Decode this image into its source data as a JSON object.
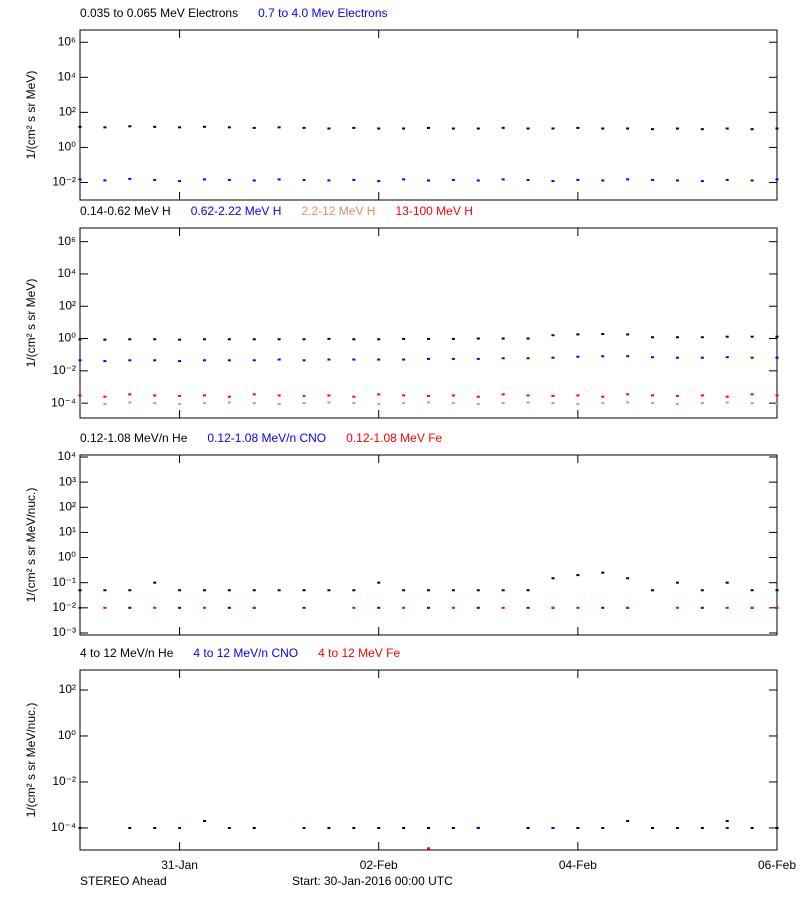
{
  "chart_data": [
    {
      "type": "scatter",
      "y_label": "1/(cm² s sr MeV)",
      "log_y": true,
      "grid": false,
      "x": [
        0,
        0.25,
        0.5,
        0.75,
        1,
        1.25,
        1.5,
        1.75,
        2,
        2.25,
        2.5,
        2.75,
        3,
        3.25,
        3.5,
        3.75,
        4,
        4.25,
        4.5,
        4.75,
        5,
        5.25,
        5.5,
        5.75,
        6,
        6.25,
        6.5,
        6.75,
        7
      ],
      "xlim": [
        0,
        7
      ],
      "ylim": [
        0.001,
        5000000
      ],
      "yticks": [
        {
          "value": 0.01,
          "label": "10⁻²"
        },
        {
          "value": 1,
          "label": "10⁰"
        },
        {
          "value": 100,
          "label": "10²"
        },
        {
          "value": 10000,
          "label": "10⁴"
        },
        {
          "value": 1000000,
          "label": "10⁶"
        }
      ],
      "series": [
        {
          "name": "0.035 to 0.065 MeV Electrons",
          "color": "#000000",
          "values": [
            15,
            14,
            16,
            15,
            14,
            15,
            14,
            13,
            14,
            13,
            12,
            13,
            12,
            12,
            13,
            12,
            12,
            13,
            12,
            12,
            13,
            12,
            12,
            11,
            12,
            11,
            12,
            11,
            12
          ]
        },
        {
          "name": "0.7 to 4.0 Mev Electrons",
          "color": "#0000ff",
          "values": [
            0.015,
            0.013,
            0.016,
            0.014,
            0.012,
            0.015,
            0.014,
            0.013,
            0.015,
            0.014,
            0.013,
            0.014,
            0.012,
            0.015,
            0.013,
            0.014,
            0.013,
            0.015,
            0.014,
            0.012,
            0.014,
            0.013,
            0.015,
            0.014,
            0.013,
            0.012,
            0.014,
            0.013,
            0.015
          ]
        }
      ]
    },
    {
      "type": "scatter",
      "y_label": "1/(cm² s sr MeV)",
      "log_y": true,
      "grid": false,
      "x": [
        0,
        0.25,
        0.5,
        0.75,
        1,
        1.25,
        1.5,
        1.75,
        2,
        2.25,
        2.5,
        2.75,
        3,
        3.25,
        3.5,
        3.75,
        4,
        4.25,
        4.5,
        4.75,
        5,
        5.25,
        5.5,
        5.75,
        6,
        6.25,
        6.5,
        6.75,
        7
      ],
      "xlim": [
        0,
        7
      ],
      "ylim": [
        1.2e-05,
        7000000
      ],
      "yticks": [
        {
          "value": 0.0001,
          "label": "10⁻⁴"
        },
        {
          "value": 0.01,
          "label": "10⁻²"
        },
        {
          "value": 1,
          "label": "10⁰"
        },
        {
          "value": 100,
          "label": "10²"
        },
        {
          "value": 10000,
          "label": "10⁴"
        },
        {
          "value": 1000000,
          "label": "10⁶"
        }
      ],
      "series": [
        {
          "name": "0.14-0.62 MeV H",
          "color": "#000000",
          "values": [
            0.9,
            0.85,
            0.9,
            0.9,
            0.85,
            0.9,
            0.9,
            0.9,
            0.9,
            0.9,
            0.95,
            0.9,
            0.9,
            0.95,
            0.95,
            0.95,
            1.0,
            1.0,
            1.0,
            1.6,
            1.8,
            1.9,
            1.8,
            1.2,
            1.2,
            1.2,
            1.3,
            1.3,
            1.3
          ]
        },
        {
          "name": "0.62-2.22 MeV H",
          "color": "#0000ff",
          "values": [
            0.045,
            0.04,
            0.045,
            0.045,
            0.04,
            0.045,
            0.045,
            0.045,
            0.05,
            0.045,
            0.05,
            0.05,
            0.05,
            0.05,
            0.055,
            0.055,
            0.055,
            0.06,
            0.06,
            0.065,
            0.075,
            0.08,
            0.08,
            0.07,
            0.065,
            0.065,
            0.07,
            0.065,
            0.065
          ]
        },
        {
          "name": "2.2-12 MeV H",
          "color": "#e0906c",
          "values": [
            0.0001,
            9e-05,
            0.00011,
            0.0001,
            9e-05,
            0.0001,
            0.00011,
            0.0001,
            9e-05,
            0.0001,
            0.00011,
            0.0001,
            9e-05,
            0.0001,
            0.00011,
            0.0001,
            9e-05,
            0.0001,
            0.00011,
            0.0001,
            9e-05,
            0.0001,
            0.00011,
            0.0001,
            9e-05,
            0.0001,
            0.00011,
            0.0001,
            9e-05
          ]
        },
        {
          "name": "13-100 MeV H",
          "color": "#ff0000",
          "values": [
            0.0003,
            0.00025,
            0.00035,
            0.0003,
            0.00028,
            0.0003,
            0.00025,
            0.00035,
            0.0003,
            0.00028,
            0.0003,
            0.00025,
            0.00035,
            0.0003,
            0.00028,
            0.0003,
            0.00025,
            0.00035,
            0.0003,
            0.00028,
            0.0003,
            0.00025,
            0.00035,
            0.0003,
            0.00028,
            0.0003,
            0.00025,
            0.00035,
            0.0003
          ]
        }
      ]
    },
    {
      "type": "scatter",
      "y_label": "1/(cm² s sr MeV/nuc.)",
      "log_y": true,
      "grid": false,
      "x": [
        0,
        0.25,
        0.5,
        0.75,
        1,
        1.25,
        1.5,
        1.75,
        2,
        2.25,
        2.5,
        2.75,
        3,
        3.25,
        3.5,
        3.75,
        4,
        4.25,
        4.5,
        4.75,
        5,
        5.25,
        5.5,
        5.75,
        6,
        6.25,
        6.5,
        6.75,
        7
      ],
      "xlim": [
        0,
        7
      ],
      "ylim": [
        0.00083,
        12000
      ],
      "yticks": [
        {
          "value": 0.001,
          "label": "10⁻³"
        },
        {
          "value": 0.01,
          "label": "10⁻²"
        },
        {
          "value": 0.1,
          "label": "10⁻¹"
        },
        {
          "value": 1,
          "label": "10⁰"
        },
        {
          "value": 10,
          "label": "10¹"
        },
        {
          "value": 100,
          "label": "10²"
        },
        {
          "value": 1000,
          "label": "10³"
        },
        {
          "value": 10000,
          "label": "10⁴"
        }
      ],
      "series": [
        {
          "name": "0.12-1.08 MeV/n He",
          "color": "#000000",
          "values": [
            0.05,
            0.05,
            0.05,
            0.1,
            0.05,
            0.05,
            0.05,
            0.05,
            0.05,
            0.05,
            0.05,
            0.05,
            0.1,
            0.05,
            0.05,
            0.05,
            0.05,
            0.05,
            0.05,
            0.15,
            0.2,
            0.25,
            0.15,
            0.05,
            0.1,
            0.05,
            0.1,
            0.05,
            0.05
          ]
        },
        {
          "name": "0.12-1.08 MeV/n CNO",
          "color": "#0000ff",
          "values": [
            0.01,
            null,
            0.01,
            null,
            0.01,
            null,
            0.01,
            0.01,
            null,
            0.01,
            null,
            null,
            0.01,
            null,
            0.01,
            null,
            0.01,
            null,
            0.01,
            0.01,
            null,
            0.01,
            0.01,
            null,
            null,
            0.01,
            null,
            0.01,
            0.01
          ]
        },
        {
          "name": "0.12-1.08 MeV Fe",
          "color": "#ff0000",
          "values": [
            null,
            0.01,
            null,
            0.01,
            null,
            0.01,
            null,
            0.01,
            null,
            null,
            null,
            0.01,
            null,
            0.01,
            null,
            0.01,
            null,
            0.01,
            null,
            0.01,
            0.01,
            null,
            0.01,
            null,
            0.01,
            null,
            0.01,
            0.01,
            0.01
          ]
        }
      ]
    },
    {
      "type": "scatter",
      "y_label": "1/(cm² s sr MeV/nuc.)",
      "log_y": true,
      "grid": false,
      "x": [
        0,
        0.25,
        0.5,
        0.75,
        1,
        1.25,
        1.5,
        1.75,
        2,
        2.25,
        2.5,
        2.75,
        3,
        3.25,
        3.5,
        3.75,
        4,
        4.25,
        4.5,
        4.75,
        5,
        5.25,
        5.5,
        5.75,
        6,
        6.25,
        6.5,
        6.75,
        7
      ],
      "xlim": [
        0,
        7
      ],
      "ylim": [
        1.1e-05,
        740
      ],
      "xticks": [
        {
          "value": 1,
          "label": "31-Jan"
        },
        {
          "value": 3,
          "label": "02-Feb"
        },
        {
          "value": 5,
          "label": "04-Feb"
        },
        {
          "value": 7,
          "label": "06-Feb"
        }
      ],
      "yticks": [
        {
          "value": 0.0001,
          "label": "10⁻⁴"
        },
        {
          "value": 0.01,
          "label": "10⁻²"
        },
        {
          "value": 1,
          "label": "10⁰"
        },
        {
          "value": 100,
          "label": "10²"
        }
      ],
      "series": [
        {
          "name": "4 to 12 MeV/n He",
          "color": "#000000",
          "values": [
            0.0001,
            null,
            0.0001,
            0.0001,
            null,
            0.0002,
            0.0001,
            0.0001,
            null,
            0.0001,
            0.0001,
            0.0001,
            0.0001,
            0.0001,
            0.0001,
            0.0001,
            0.0001,
            null,
            0.0001,
            0.0001,
            0.0001,
            0.0001,
            0.0002,
            0.0001,
            0.0001,
            0.0001,
            0.0002,
            0.0001,
            0.0001
          ]
        },
        {
          "name": "4 to 12 MeV/n CNO",
          "color": "#0000ff",
          "values": [
            null,
            null,
            null,
            null,
            0.0001,
            null,
            null,
            null,
            null,
            0.0001,
            null,
            null,
            null,
            null,
            null,
            null,
            0.0001,
            null,
            null,
            0.0001,
            null,
            null,
            null,
            null,
            null,
            null,
            0.0001,
            null,
            null
          ]
        },
        {
          "name": "4 to 12 MeV Fe",
          "color": "#ff0000",
          "values": [
            null,
            null,
            null,
            null,
            null,
            null,
            null,
            null,
            null,
            null,
            null,
            null,
            null,
            null,
            1.3e-05,
            null,
            null,
            null,
            null,
            null,
            null,
            null,
            null,
            null,
            null,
            null,
            null,
            null,
            null
          ]
        }
      ]
    }
  ],
  "footer": {
    "left": "STEREO Ahead",
    "center": "Start: 30-Jan-2016 00:00 UTC"
  }
}
